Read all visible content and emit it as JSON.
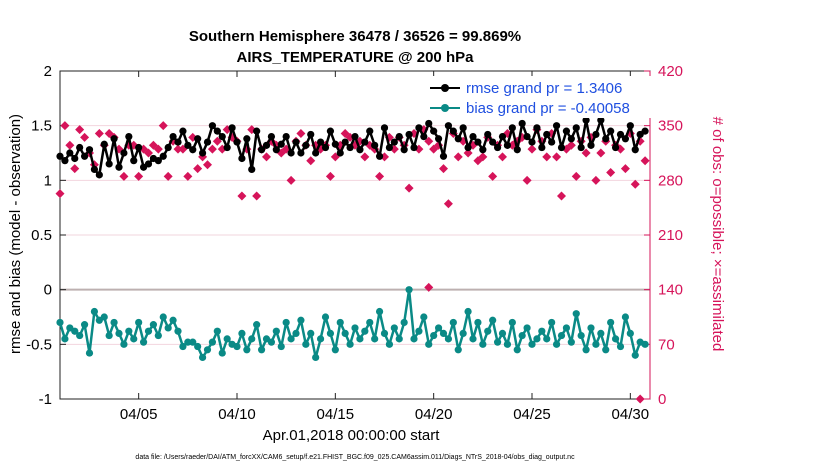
{
  "chart_data": {
    "type": "line",
    "title_line1": "Southern Hemisphere 36478 / 36526 = 99.869%",
    "title_line2": "AIRS_TEMPERATURE @ 200 hPa",
    "xlabel": "Apr.01,2018 00:00:00 start",
    "ylabel_left": "rmse and bias (model - observation)",
    "ylabel_right": "# of obs: o=possible; ×=assimilated",
    "xlim": [
      1,
      31
    ],
    "ylim_left": [
      -1,
      2
    ],
    "ylim_right": [
      0,
      420
    ],
    "x_ticks": [
      5,
      10,
      15,
      20,
      25,
      30
    ],
    "x_tick_labels": [
      "04/05",
      "04/10",
      "04/15",
      "04/20",
      "04/25",
      "04/30"
    ],
    "y_ticks_left": [
      -1,
      -0.5,
      0,
      0.5,
      1,
      1.5,
      2
    ],
    "y_tick_labels_left": [
      "-1",
      "-0.5",
      "0",
      "0.5",
      "1",
      "1.5",
      "2"
    ],
    "y_ticks_right": [
      0,
      70,
      140,
      210,
      280,
      350,
      420
    ],
    "y_tick_labels_right": [
      "0",
      "70",
      "140",
      "210",
      "280",
      "350",
      "420"
    ],
    "grid": true,
    "legend_position": "top-right",
    "series": [
      {
        "name": "rmse grand pr = 1.3406",
        "color": "#000000",
        "marker": "circle",
        "x": [
          1.0,
          1.25,
          1.5,
          1.75,
          2.0,
          2.25,
          2.5,
          2.75,
          3.0,
          3.25,
          3.5,
          3.75,
          4.0,
          4.25,
          4.5,
          4.75,
          5.0,
          5.25,
          5.5,
          5.75,
          6.0,
          6.25,
          6.5,
          6.75,
          7.0,
          7.25,
          7.5,
          7.75,
          8.0,
          8.25,
          8.5,
          8.75,
          9.0,
          9.25,
          9.5,
          9.75,
          10.0,
          10.25,
          10.5,
          10.75,
          11.0,
          11.25,
          11.5,
          11.75,
          12.0,
          12.25,
          12.5,
          12.75,
          13.0,
          13.25,
          13.5,
          13.75,
          14.0,
          14.25,
          14.5,
          14.75,
          15.0,
          15.25,
          15.5,
          15.75,
          16.0,
          16.25,
          16.5,
          16.75,
          17.0,
          17.25,
          17.5,
          17.75,
          18.0,
          18.25,
          18.5,
          18.75,
          19.0,
          19.25,
          19.5,
          19.75,
          20.0,
          20.25,
          20.5,
          20.75,
          21.0,
          21.25,
          21.5,
          21.75,
          22.0,
          22.25,
          22.5,
          22.75,
          23.0,
          23.25,
          23.5,
          23.75,
          24.0,
          24.25,
          24.5,
          24.75,
          25.0,
          25.25,
          25.5,
          25.75,
          26.0,
          26.25,
          26.5,
          26.75,
          27.0,
          27.25,
          27.5,
          27.75,
          28.0,
          28.25,
          28.5,
          28.75,
          29.0,
          29.25,
          29.5,
          29.75,
          30.0,
          30.25,
          30.5,
          30.75
        ],
        "y": [
          1.22,
          1.18,
          1.25,
          1.2,
          1.3,
          1.22,
          1.28,
          1.1,
          1.05,
          1.33,
          1.15,
          1.38,
          1.12,
          1.25,
          1.4,
          1.18,
          1.3,
          1.12,
          1.15,
          1.2,
          1.18,
          1.22,
          1.3,
          1.4,
          1.35,
          1.45,
          1.32,
          1.28,
          1.38,
          1.25,
          1.35,
          1.5,
          1.45,
          1.4,
          1.3,
          1.48,
          1.35,
          1.2,
          1.38,
          1.1,
          1.45,
          1.28,
          1.32,
          1.4,
          1.28,
          1.33,
          1.4,
          1.25,
          1.35,
          1.25,
          1.32,
          1.42,
          1.25,
          1.35,
          1.3,
          1.45,
          1.33,
          1.25,
          1.35,
          1.3,
          1.4,
          1.28,
          1.35,
          1.45,
          1.32,
          1.22,
          1.48,
          1.3,
          1.35,
          1.4,
          1.28,
          1.42,
          1.3,
          1.48,
          1.4,
          1.52,
          1.45,
          1.38,
          1.22,
          1.5,
          1.45,
          1.38,
          1.48,
          1.3,
          1.4,
          1.35,
          1.28,
          1.42,
          1.35,
          1.3,
          1.4,
          1.32,
          1.48,
          1.28,
          1.52,
          1.4,
          1.35,
          1.48,
          1.3,
          1.42,
          1.35,
          1.5,
          1.3,
          1.45,
          1.38,
          1.48,
          1.3,
          1.55,
          1.32,
          1.42,
          1.55,
          1.38,
          1.45,
          1.3,
          1.42,
          1.38,
          1.5,
          1.28,
          1.42,
          1.45
        ]
      },
      {
        "name": "bias grand pr = -0.40058",
        "color": "#0a8a86",
        "marker": "circle",
        "x": [
          1.0,
          1.25,
          1.5,
          1.75,
          2.0,
          2.25,
          2.5,
          2.75,
          3.0,
          3.25,
          3.5,
          3.75,
          4.0,
          4.25,
          4.5,
          4.75,
          5.0,
          5.25,
          5.5,
          5.75,
          6.0,
          6.25,
          6.5,
          6.75,
          7.0,
          7.25,
          7.5,
          7.75,
          8.0,
          8.25,
          8.5,
          8.75,
          9.0,
          9.25,
          9.5,
          9.75,
          10.0,
          10.25,
          10.5,
          10.75,
          11.0,
          11.25,
          11.5,
          11.75,
          12.0,
          12.25,
          12.5,
          12.75,
          13.0,
          13.25,
          13.5,
          13.75,
          14.0,
          14.25,
          14.5,
          14.75,
          15.0,
          15.25,
          15.5,
          15.75,
          16.0,
          16.25,
          16.5,
          16.75,
          17.0,
          17.25,
          17.5,
          17.75,
          18.0,
          18.25,
          18.5,
          18.75,
          19.0,
          19.25,
          19.5,
          19.75,
          20.0,
          20.25,
          20.5,
          20.75,
          21.0,
          21.25,
          21.5,
          21.75,
          22.0,
          22.25,
          22.5,
          22.75,
          23.0,
          23.25,
          23.5,
          23.75,
          24.0,
          24.25,
          24.5,
          24.75,
          25.0,
          25.25,
          25.5,
          25.75,
          26.0,
          26.25,
          26.5,
          26.75,
          27.0,
          27.25,
          27.5,
          27.75,
          28.0,
          28.25,
          28.5,
          28.75,
          29.0,
          29.25,
          29.5,
          29.75,
          30.0,
          30.25,
          30.5,
          30.75
        ],
        "y": [
          -0.3,
          -0.45,
          -0.35,
          -0.38,
          -0.42,
          -0.32,
          -0.58,
          -0.2,
          -0.28,
          -0.25,
          -0.42,
          -0.3,
          -0.4,
          -0.5,
          -0.38,
          -0.45,
          -0.3,
          -0.48,
          -0.38,
          -0.32,
          -0.42,
          -0.25,
          -0.35,
          -0.28,
          -0.38,
          -0.52,
          -0.48,
          -0.48,
          -0.52,
          -0.62,
          -0.55,
          -0.48,
          -0.38,
          -0.58,
          -0.45,
          -0.5,
          -0.52,
          -0.4,
          -0.55,
          -0.45,
          -0.32,
          -0.55,
          -0.45,
          -0.48,
          -0.38,
          -0.52,
          -0.3,
          -0.45,
          -0.4,
          -0.28,
          -0.5,
          -0.4,
          -0.62,
          -0.45,
          -0.25,
          -0.4,
          -0.55,
          -0.3,
          -0.4,
          -0.5,
          -0.35,
          -0.45,
          -0.38,
          -0.3,
          -0.45,
          -0.2,
          -0.4,
          -0.5,
          -0.35,
          -0.45,
          -0.3,
          0.0,
          -0.45,
          -0.38,
          -0.25,
          -0.5,
          -0.42,
          -0.35,
          -0.4,
          -0.45,
          -0.3,
          -0.55,
          -0.4,
          -0.2,
          -0.45,
          -0.3,
          -0.5,
          -0.38,
          -0.28,
          -0.48,
          -0.4,
          -0.5,
          -0.3,
          -0.55,
          -0.42,
          -0.35,
          -0.5,
          -0.45,
          -0.38,
          -0.45,
          -0.3,
          -0.5,
          -0.42,
          -0.35,
          -0.48,
          -0.22,
          -0.42,
          -0.55,
          -0.35,
          -0.5,
          -0.4,
          -0.55,
          -0.3,
          -0.45,
          -0.52,
          -0.25,
          -0.4,
          -0.6,
          -0.48,
          -0.5
        ]
      }
    ],
    "obs_possible_color": "#d6145a",
    "obs_possible": {
      "x": [
        1.0,
        1.25,
        1.5,
        1.75,
        2.0,
        2.25,
        2.5,
        2.75,
        3.0,
        3.25,
        3.5,
        3.75,
        4.0,
        4.25,
        4.5,
        4.75,
        5.0,
        5.25,
        5.5,
        5.75,
        6.0,
        6.25,
        6.5,
        6.75,
        7.0,
        7.25,
        7.5,
        7.75,
        8.0,
        8.25,
        8.5,
        8.75,
        9.0,
        9.25,
        9.5,
        9.75,
        10.0,
        10.25,
        10.5,
        10.75,
        11.0,
        11.25,
        11.5,
        11.75,
        12.0,
        12.25,
        12.5,
        12.75,
        13.0,
        13.25,
        13.5,
        13.75,
        14.0,
        14.25,
        14.5,
        14.75,
        15.0,
        15.25,
        15.5,
        15.75,
        16.0,
        16.25,
        16.5,
        16.75,
        17.0,
        17.25,
        17.5,
        17.75,
        18.0,
        18.25,
        18.5,
        18.75,
        19.0,
        19.25,
        19.5,
        19.75,
        20.0,
        20.25,
        20.5,
        20.75,
        21.0,
        21.25,
        21.5,
        21.75,
        22.0,
        22.25,
        22.5,
        22.75,
        23.0,
        23.25,
        23.5,
        23.75,
        24.0,
        24.25,
        24.5,
        24.75,
        25.0,
        25.25,
        25.5,
        25.75,
        26.0,
        26.25,
        26.5,
        26.75,
        27.0,
        27.25,
        27.5,
        27.75,
        28.0,
        28.25,
        28.5,
        28.75,
        29.0,
        29.25,
        29.5,
        29.75,
        30.0,
        30.25,
        30.5,
        30.75
      ],
      "y": [
        263,
        350,
        325,
        295,
        345,
        335,
        315,
        300,
        340,
        325,
        340,
        335,
        320,
        285,
        325,
        325,
        285,
        320,
        315,
        325,
        320,
        350,
        285,
        330,
        320,
        320,
        285,
        335,
        295,
        310,
        300,
        320,
        330,
        320,
        345,
        335,
        330,
        260,
        320,
        345,
        260,
        320,
        310,
        330,
        325,
        315,
        320,
        280,
        330,
        340,
        325,
        305,
        325,
        320,
        325,
        285,
        310,
        325,
        340,
        335,
        325,
        330,
        310,
        325,
        320,
        285,
        310,
        335,
        320,
        335,
        325,
        270,
        340,
        320,
        345,
        330,
        320,
        325,
        295,
        250,
        340,
        310,
        330,
        315,
        325,
        305,
        310,
        335,
        285,
        325,
        310,
        340,
        325,
        330,
        335,
        280,
        320,
        345,
        330,
        310,
        340,
        310,
        260,
        320,
        325,
        285,
        330,
        315,
        335,
        280,
        315,
        330,
        290,
        325,
        320,
        295,
        340,
        275,
        330,
        305
      ]
    },
    "obs_assimilated": {
      "x": [],
      "y": []
    },
    "extra_marks": [
      {
        "x": 19.75,
        "y_right": 143
      },
      {
        "x": 30.5,
        "y_right": 0
      }
    ],
    "legend": [
      "rmse grand pr = 1.3406",
      "bias grand pr = -0.40058"
    ]
  },
  "footnote": "data file: /Users/raeder/DAI/ATM_forcXX/CAM6_setup/f.e21.FHIST_BGC.f09_025.CAM6assim.011/Diags_NTrS_2018-04/obs_diag_output.nc"
}
